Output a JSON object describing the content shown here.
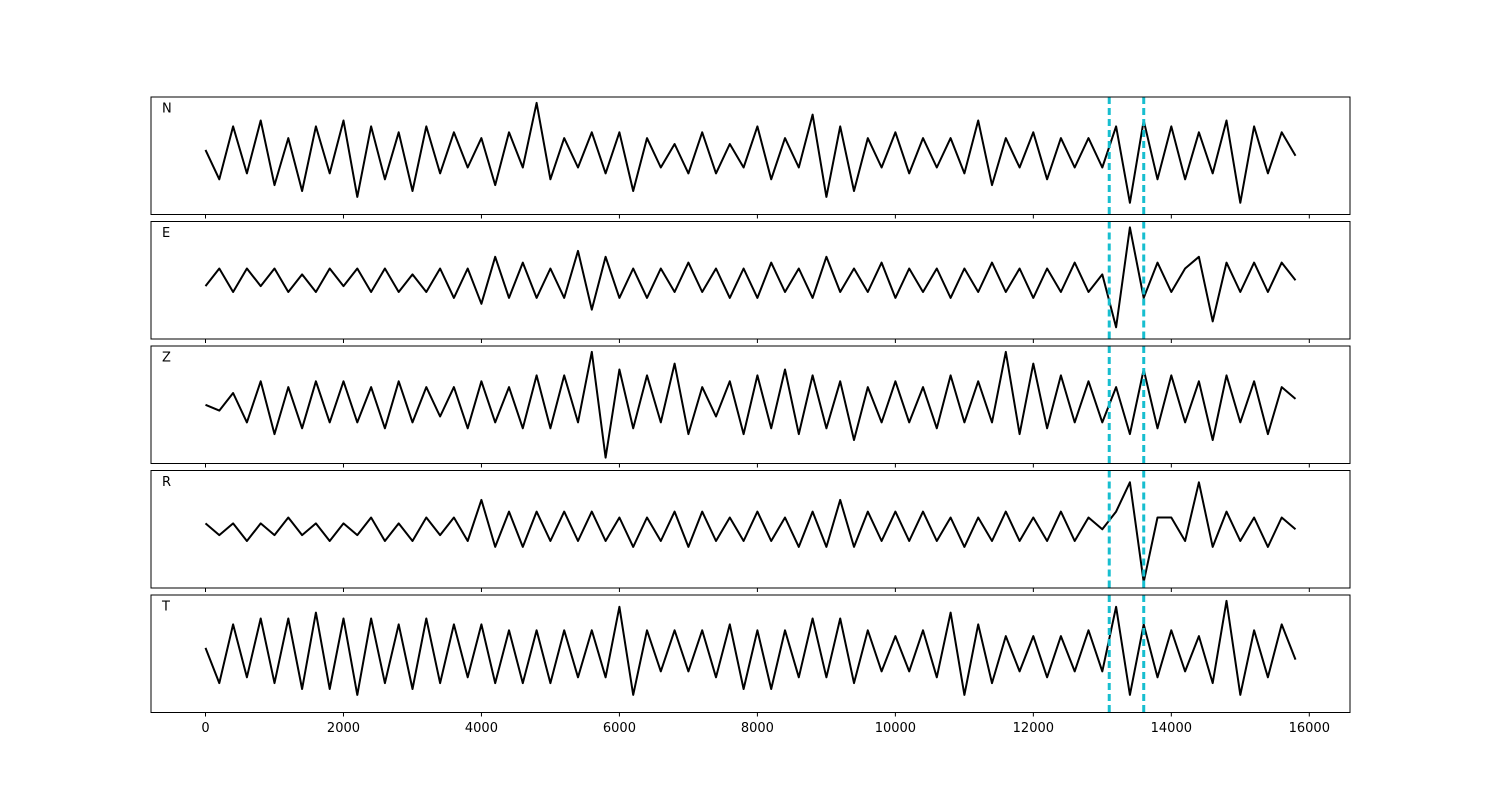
{
  "chart_data": [
    {
      "type": "line",
      "title": "N",
      "color": "#000000",
      "vlines": [
        13100,
        13600
      ],
      "vline_color": "#17becf",
      "xlim": [
        -790,
        16590
      ],
      "ylim": [
        -1,
        1
      ],
      "xticks": [
        0,
        2000,
        4000,
        6000,
        8000,
        10000,
        12000,
        14000,
        16000
      ],
      "x": [
        0,
        200,
        400,
        600,
        800,
        1000,
        1200,
        1400,
        1600,
        1800,
        2000,
        2200,
        2400,
        2600,
        2800,
        3000,
        3200,
        3400,
        3600,
        3800,
        4000,
        4200,
        4400,
        4600,
        4800,
        5000,
        5200,
        5400,
        5600,
        5800,
        6000,
        6200,
        6400,
        6600,
        6800,
        7000,
        7200,
        7400,
        7600,
        7800,
        8000,
        8200,
        8400,
        8600,
        8800,
        9000,
        9200,
        9400,
        9600,
        9800,
        10000,
        10200,
        10400,
        10600,
        10800,
        11000,
        11200,
        11400,
        11600,
        11800,
        12000,
        12200,
        12400,
        12600,
        12800,
        13000,
        13200,
        13400,
        13600,
        13800,
        14000,
        14200,
        14400,
        14600,
        14800,
        15000,
        15200,
        15400,
        15600,
        15800
      ],
      "values": [
        0.1,
        -0.4,
        0.5,
        -0.3,
        0.6,
        -0.5,
        0.3,
        -0.6,
        0.5,
        -0.3,
        0.6,
        -0.7,
        0.5,
        -0.4,
        0.4,
        -0.6,
        0.5,
        -0.3,
        0.4,
        -0.2,
        0.3,
        -0.5,
        0.4,
        -0.2,
        0.9,
        -0.4,
        0.3,
        -0.2,
        0.4,
        -0.3,
        0.4,
        -0.6,
        0.3,
        -0.2,
        0.2,
        -0.3,
        0.4,
        -0.3,
        0.2,
        -0.2,
        0.5,
        -0.4,
        0.3,
        -0.2,
        0.7,
        -0.7,
        0.5,
        -0.6,
        0.3,
        -0.2,
        0.4,
        -0.3,
        0.3,
        -0.2,
        0.3,
        -0.3,
        0.6,
        -0.5,
        0.3,
        -0.2,
        0.4,
        -0.4,
        0.3,
        -0.2,
        0.3,
        -0.2,
        0.5,
        -0.8,
        0.6,
        -0.4,
        0.5,
        -0.4,
        0.4,
        -0.3,
        0.6,
        -0.8,
        0.5,
        -0.3,
        0.4,
        0.0
      ]
    },
    {
      "type": "line",
      "title": "E",
      "color": "#000000",
      "vlines": [
        13100,
        13600
      ],
      "vline_color": "#17becf",
      "xlim": [
        -790,
        16590
      ],
      "ylim": [
        -1,
        1
      ],
      "xticks": [
        0,
        2000,
        4000,
        6000,
        8000,
        10000,
        12000,
        14000,
        16000
      ],
      "x": [
        0,
        200,
        400,
        600,
        800,
        1000,
        1200,
        1400,
        1600,
        1800,
        2000,
        2200,
        2400,
        2600,
        2800,
        3000,
        3200,
        3400,
        3600,
        3800,
        4000,
        4200,
        4400,
        4600,
        4800,
        5000,
        5200,
        5400,
        5600,
        5800,
        6000,
        6200,
        6400,
        6600,
        6800,
        7000,
        7200,
        7400,
        7600,
        7800,
        8000,
        8200,
        8400,
        8600,
        8800,
        9000,
        9200,
        9400,
        9600,
        9800,
        10000,
        10200,
        10400,
        10600,
        10800,
        11000,
        11200,
        11400,
        11600,
        11800,
        12000,
        12200,
        12400,
        12600,
        12800,
        13000,
        13200,
        13400,
        13600,
        13800,
        14000,
        14200,
        14400,
        14600,
        14800,
        15000,
        15200,
        15400,
        15600,
        15800
      ],
      "values": [
        -0.1,
        0.2,
        -0.2,
        0.2,
        -0.1,
        0.2,
        -0.2,
        0.1,
        -0.2,
        0.2,
        -0.1,
        0.2,
        -0.2,
        0.2,
        -0.2,
        0.1,
        -0.2,
        0.2,
        -0.3,
        0.2,
        -0.4,
        0.4,
        -0.3,
        0.3,
        -0.3,
        0.2,
        -0.3,
        0.5,
        -0.5,
        0.4,
        -0.3,
        0.2,
        -0.3,
        0.2,
        -0.2,
        0.3,
        -0.2,
        0.2,
        -0.3,
        0.2,
        -0.3,
        0.3,
        -0.2,
        0.2,
        -0.3,
        0.4,
        -0.2,
        0.2,
        -0.2,
        0.3,
        -0.3,
        0.2,
        -0.2,
        0.2,
        -0.3,
        0.2,
        -0.2,
        0.3,
        -0.2,
        0.2,
        -0.3,
        0.2,
        -0.2,
        0.3,
        -0.2,
        0.1,
        -0.8,
        0.9,
        -0.3,
        0.3,
        -0.2,
        0.2,
        0.4,
        -0.7,
        0.3,
        -0.2,
        0.3,
        -0.2,
        0.3,
        0.0
      ]
    },
    {
      "type": "line",
      "title": "Z",
      "color": "#000000",
      "vlines": [
        13100,
        13600
      ],
      "vline_color": "#17becf",
      "xlim": [
        -790,
        16590
      ],
      "ylim": [
        -1,
        1
      ],
      "xticks": [
        0,
        2000,
        4000,
        6000,
        8000,
        10000,
        12000,
        14000,
        16000
      ],
      "x": [
        0,
        200,
        400,
        600,
        800,
        1000,
        1200,
        1400,
        1600,
        1800,
        2000,
        2200,
        2400,
        2600,
        2800,
        3000,
        3200,
        3400,
        3600,
        3800,
        4000,
        4200,
        4400,
        4600,
        4800,
        5000,
        5200,
        5400,
        5600,
        5800,
        6000,
        6200,
        6400,
        6600,
        6800,
        7000,
        7200,
        7400,
        7600,
        7800,
        8000,
        8200,
        8400,
        8600,
        8800,
        9000,
        9200,
        9400,
        9600,
        9800,
        10000,
        10200,
        10400,
        10600,
        10800,
        11000,
        11200,
        11400,
        11600,
        11800,
        12000,
        12200,
        12400,
        12600,
        12800,
        13000,
        13200,
        13400,
        13600,
        13800,
        14000,
        14200,
        14400,
        14600,
        14800,
        15000,
        15200,
        15400,
        15600,
        15800
      ],
      "values": [
        0.0,
        -0.1,
        0.2,
        -0.3,
        0.4,
        -0.5,
        0.3,
        -0.4,
        0.4,
        -0.3,
        0.4,
        -0.3,
        0.3,
        -0.4,
        0.4,
        -0.3,
        0.3,
        -0.2,
        0.3,
        -0.4,
        0.4,
        -0.3,
        0.3,
        -0.4,
        0.5,
        -0.4,
        0.5,
        -0.3,
        0.9,
        -0.9,
        0.6,
        -0.4,
        0.5,
        -0.3,
        0.7,
        -0.5,
        0.3,
        -0.2,
        0.4,
        -0.5,
        0.5,
        -0.4,
        0.6,
        -0.5,
        0.5,
        -0.4,
        0.4,
        -0.6,
        0.3,
        -0.3,
        0.4,
        -0.3,
        0.3,
        -0.4,
        0.5,
        -0.3,
        0.4,
        -0.3,
        0.9,
        -0.5,
        0.7,
        -0.4,
        0.5,
        -0.3,
        0.4,
        -0.3,
        0.3,
        -0.5,
        0.6,
        -0.4,
        0.5,
        -0.3,
        0.4,
        -0.6,
        0.5,
        -0.3,
        0.4,
        -0.5,
        0.3,
        0.1
      ]
    },
    {
      "type": "line",
      "title": "R",
      "color": "#000000",
      "vlines": [
        13100,
        13600
      ],
      "vline_color": "#17becf",
      "xlim": [
        -790,
        16590
      ],
      "ylim": [
        -1,
        1
      ],
      "xticks": [
        0,
        2000,
        4000,
        6000,
        8000,
        10000,
        12000,
        14000,
        16000
      ],
      "x": [
        0,
        200,
        400,
        600,
        800,
        1000,
        1200,
        1400,
        1600,
        1800,
        2000,
        2200,
        2400,
        2600,
        2800,
        3000,
        3200,
        3400,
        3600,
        3800,
        4000,
        4200,
        4400,
        4600,
        4800,
        5000,
        5200,
        5400,
        5600,
        5800,
        6000,
        6200,
        6400,
        6600,
        6800,
        7000,
        7200,
        7400,
        7600,
        7800,
        8000,
        8200,
        8400,
        8600,
        8800,
        9000,
        9200,
        9400,
        9600,
        9800,
        10000,
        10200,
        10400,
        10600,
        10800,
        11000,
        11200,
        11400,
        11600,
        11800,
        12000,
        12200,
        12400,
        12600,
        12800,
        13000,
        13200,
        13400,
        13600,
        13800,
        14000,
        14200,
        14400,
        14600,
        14800,
        15000,
        15200,
        15400,
        15600,
        15800
      ],
      "values": [
        0.1,
        -0.1,
        0.1,
        -0.2,
        0.1,
        -0.1,
        0.2,
        -0.1,
        0.1,
        -0.2,
        0.1,
        -0.1,
        0.2,
        -0.2,
        0.1,
        -0.2,
        0.2,
        -0.1,
        0.2,
        -0.2,
        0.5,
        -0.3,
        0.3,
        -0.3,
        0.3,
        -0.2,
        0.3,
        -0.2,
        0.3,
        -0.2,
        0.2,
        -0.3,
        0.2,
        -0.2,
        0.3,
        -0.3,
        0.3,
        -0.2,
        0.2,
        -0.2,
        0.3,
        -0.2,
        0.2,
        -0.3,
        0.3,
        -0.3,
        0.5,
        -0.3,
        0.3,
        -0.2,
        0.3,
        -0.2,
        0.3,
        -0.2,
        0.2,
        -0.3,
        0.2,
        -0.2,
        0.3,
        -0.2,
        0.2,
        -0.2,
        0.3,
        -0.2,
        0.2,
        0.0,
        0.3,
        0.8,
        -0.9,
        0.2,
        0.2,
        -0.2,
        0.8,
        -0.3,
        0.3,
        -0.2,
        0.2,
        -0.3,
        0.2,
        0.0
      ]
    },
    {
      "type": "line",
      "title": "T",
      "color": "#000000",
      "vlines": [
        13100,
        13600
      ],
      "vline_color": "#17becf",
      "xlim": [
        -790,
        16590
      ],
      "ylim": [
        -1,
        1
      ],
      "xticks": [
        0,
        2000,
        4000,
        6000,
        8000,
        10000,
        12000,
        14000,
        16000
      ],
      "x": [
        0,
        200,
        400,
        600,
        800,
        1000,
        1200,
        1400,
        1600,
        1800,
        2000,
        2200,
        2400,
        2600,
        2800,
        3000,
        3200,
        3400,
        3600,
        3800,
        4000,
        4200,
        4400,
        4600,
        4800,
        5000,
        5200,
        5400,
        5600,
        5800,
        6000,
        6200,
        6400,
        6600,
        6800,
        7000,
        7200,
        7400,
        7600,
        7800,
        8000,
        8200,
        8400,
        8600,
        8800,
        9000,
        9200,
        9400,
        9600,
        9800,
        10000,
        10200,
        10400,
        10600,
        10800,
        11000,
        11200,
        11400,
        11600,
        11800,
        12000,
        12200,
        12400,
        12600,
        12800,
        13000,
        13200,
        13400,
        13600,
        13800,
        14000,
        14200,
        14400,
        14600,
        14800,
        15000,
        15200,
        15400,
        15600,
        15800
      ],
      "values": [
        0.1,
        -0.5,
        0.5,
        -0.4,
        0.6,
        -0.5,
        0.6,
        -0.6,
        0.7,
        -0.6,
        0.6,
        -0.7,
        0.6,
        -0.5,
        0.5,
        -0.6,
        0.6,
        -0.5,
        0.5,
        -0.4,
        0.5,
        -0.5,
        0.4,
        -0.5,
        0.4,
        -0.5,
        0.4,
        -0.4,
        0.4,
        -0.4,
        0.8,
        -0.7,
        0.4,
        -0.3,
        0.4,
        -0.3,
        0.4,
        -0.4,
        0.5,
        -0.6,
        0.4,
        -0.6,
        0.4,
        -0.4,
        0.6,
        -0.4,
        0.6,
        -0.5,
        0.4,
        -0.3,
        0.3,
        -0.3,
        0.4,
        -0.4,
        0.7,
        -0.7,
        0.5,
        -0.5,
        0.3,
        -0.3,
        0.3,
        -0.4,
        0.3,
        -0.3,
        0.4,
        -0.3,
        0.8,
        -0.7,
        0.5,
        -0.4,
        0.4,
        -0.3,
        0.3,
        -0.5,
        0.9,
        -0.7,
        0.4,
        -0.4,
        0.5,
        -0.1
      ]
    }
  ]
}
